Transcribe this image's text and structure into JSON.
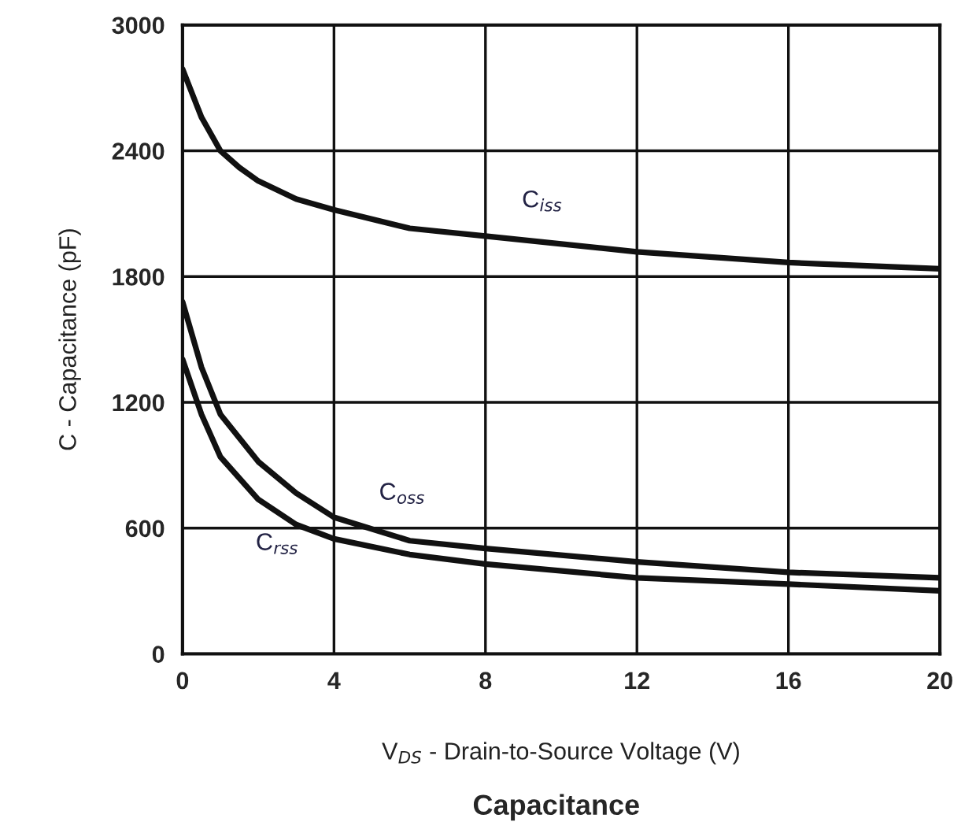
{
  "chart_data": {
    "type": "line",
    "title": "Capacitance",
    "xlabel": "V$_{DS}$ - Drain-to-Source Voltage (V)",
    "ylabel": "C - Capacitance (pF)",
    "xlim": [
      0,
      20
    ],
    "xticks": [
      0,
      4,
      8,
      12,
      16,
      20
    ],
    "ylim": [
      0,
      3000
    ],
    "yticks": [
      0,
      600,
      1200,
      1800,
      2400,
      3000
    ],
    "grid": true,
    "marker": "none",
    "line_style": "solid",
    "series": [
      {
        "name": "C$_{iss}$",
        "color": "#111111",
        "x": [
          0,
          0.5,
          1,
          1.5,
          2,
          3,
          4,
          6,
          8,
          12,
          16,
          20
        ],
        "values": [
          2790,
          2560,
          2400,
          2320,
          2256,
          2170,
          2118,
          2030,
          1993,
          1918,
          1867,
          1837
        ]
      },
      {
        "name": "C$_{oss}$",
        "color": "#111111",
        "x": [
          0,
          0.5,
          1,
          2,
          3,
          4,
          6,
          8,
          12,
          16,
          20
        ],
        "values": [
          1680,
          1368,
          1143,
          917,
          767,
          652,
          540,
          503,
          439,
          389,
          363
        ]
      },
      {
        "name": "C$_{rss}$",
        "color": "#111111",
        "x": [
          0,
          0.5,
          1,
          2,
          3,
          4,
          6,
          8,
          12,
          16,
          20
        ],
        "values": [
          1406,
          1143,
          940,
          737,
          617,
          549,
          474,
          429,
          363,
          333,
          301
        ]
      }
    ]
  }
}
